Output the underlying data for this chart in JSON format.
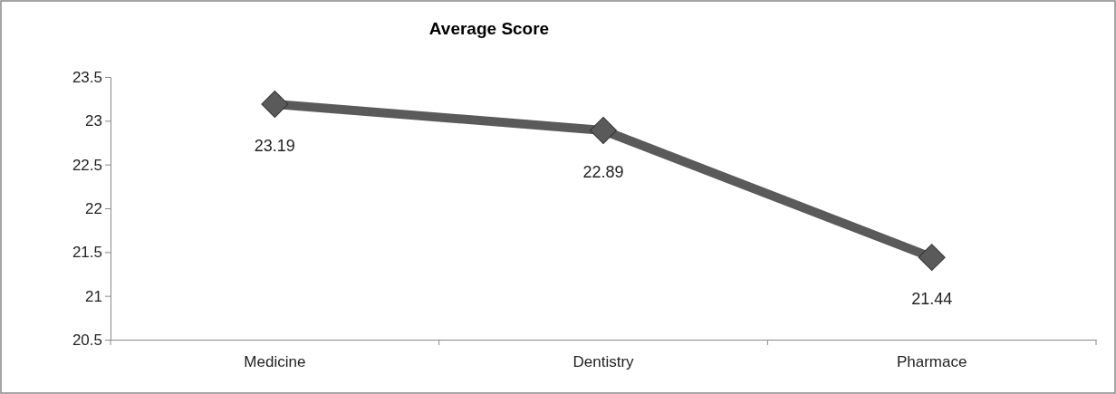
{
  "chart_data": {
    "type": "line",
    "title": "Average Score",
    "categories": [
      "Medicine",
      "Dentistry",
      "Pharmace"
    ],
    "series": [
      {
        "color": "#5a5a5a",
        "values": [
          23.19,
          22.89,
          21.44
        ]
      }
    ],
    "ylim": [
      20.5,
      23.5
    ],
    "yticks": [
      20.5,
      21,
      21.5,
      22,
      22.5,
      23,
      23.5
    ],
    "marker": "diamond",
    "line_style": "solid",
    "data_labels": true
  }
}
